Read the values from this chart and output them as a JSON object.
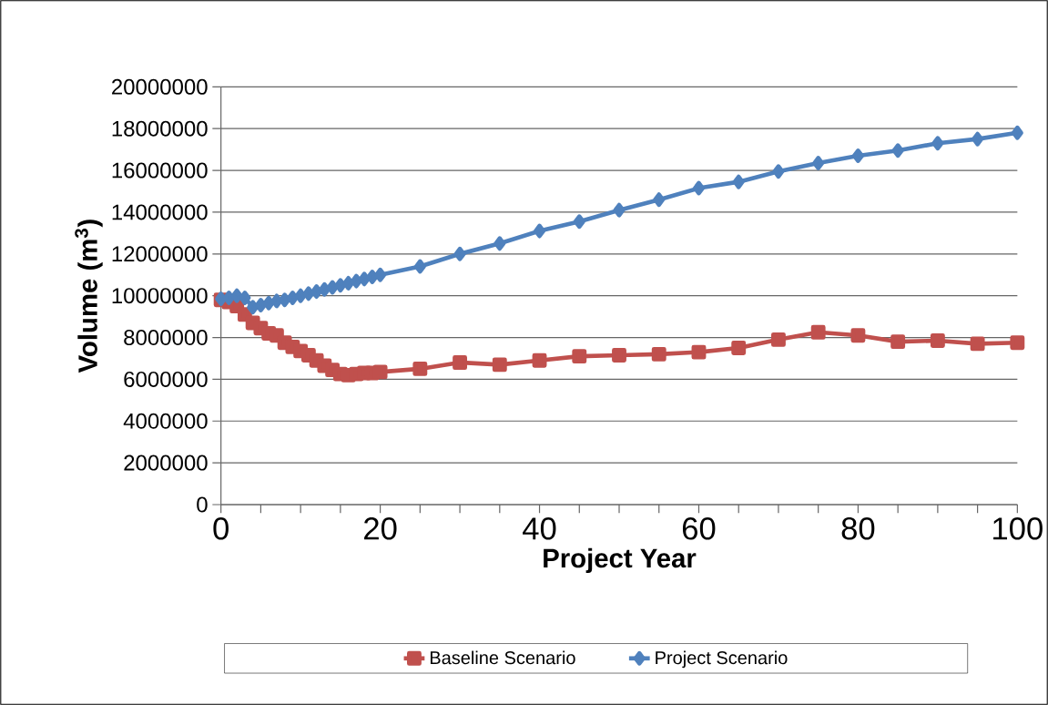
{
  "chart_data": {
    "type": "line",
    "xlabel": "Project Year",
    "ylabel": "Volume (m$^{3}$)",
    "x": [
      0,
      1,
      2,
      3,
      4,
      5,
      6,
      7,
      8,
      9,
      10,
      11,
      12,
      13,
      14,
      15,
      16,
      17,
      18,
      19,
      20,
      25,
      30,
      35,
      40,
      45,
      50,
      55,
      60,
      65,
      70,
      75,
      80,
      85,
      90,
      95,
      100
    ],
    "series": [
      {
        "name": "Baseline Scenario",
        "color": "#c0504d",
        "marker": "square",
        "values": [
          9800000,
          9700000,
          9500000,
          9100000,
          8700000,
          8450000,
          8200000,
          8100000,
          7750000,
          7550000,
          7350000,
          7150000,
          6900000,
          6650000,
          6450000,
          6250000,
          6200000,
          6250000,
          6300000,
          6300000,
          6350000,
          6500000,
          6800000,
          6700000,
          6900000,
          7100000,
          7150000,
          7200000,
          7300000,
          7500000,
          7900000,
          8250000,
          8100000,
          7800000,
          7850000,
          7700000,
          7750000
        ]
      },
      {
        "name": "Project Scenario",
        "color": "#4f81bd",
        "marker": "diamond",
        "values": [
          9850000,
          9900000,
          10000000,
          9900000,
          9450000,
          9550000,
          9650000,
          9750000,
          9800000,
          9900000,
          10000000,
          10100000,
          10200000,
          10300000,
          10400000,
          10500000,
          10600000,
          10700000,
          10800000,
          10900000,
          11000000,
          11400000,
          12000000,
          12500000,
          13100000,
          13550000,
          14100000,
          14600000,
          15150000,
          15450000,
          15950000,
          16350000,
          16700000,
          16950000,
          17300000,
          17500000,
          17800000
        ]
      }
    ],
    "xlim": [
      0,
      100
    ],
    "xticks": [
      0,
      {
        "value": 5,
        "label": null
      },
      {
        "value": 10,
        "label": null
      },
      {
        "value": 15,
        "label": null
      },
      20,
      {
        "value": 25,
        "label": null
      },
      {
        "value": 30,
        "label": null
      },
      {
        "value": 35,
        "label": null
      },
      40,
      {
        "value": 45,
        "label": null
      },
      {
        "value": 50,
        "label": null
      },
      {
        "value": 55,
        "label": null
      },
      60,
      {
        "value": 65,
        "label": null
      },
      {
        "value": 70,
        "label": null
      },
      {
        "value": 75,
        "label": null
      },
      80,
      {
        "value": 85,
        "label": null
      },
      {
        "value": 90,
        "label": null
      },
      {
        "value": 95,
        "label": null
      },
      100
    ],
    "ylim": [
      0,
      20000000
    ],
    "yticks": [
      0,
      2000000,
      4000000,
      6000000,
      8000000,
      10000000,
      12000000,
      14000000,
      16000000,
      18000000,
      20000000
    ],
    "grid": "y",
    "legend": "bottom",
    "line_style": "solid"
  }
}
